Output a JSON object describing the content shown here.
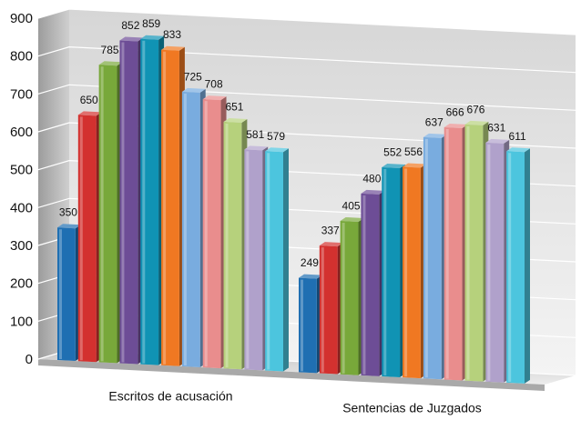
{
  "chart_data": {
    "type": "bar",
    "categories": [
      "Escritos de acusación",
      "Sentencias de Juzgados"
    ],
    "series": [
      {
        "values": [
          350,
          249
        ],
        "color": "#1f6fb2"
      },
      {
        "values": [
          650,
          337
        ],
        "color": "#d3312f"
      },
      {
        "values": [
          785,
          405
        ],
        "color": "#78a83a"
      },
      {
        "values": [
          852,
          480
        ],
        "color": "#6d4d96"
      },
      {
        "values": [
          859,
          552
        ],
        "color": "#1093b4"
      },
      {
        "values": [
          833,
          556
        ],
        "color": "#f07822"
      },
      {
        "values": [
          725,
          637
        ],
        "color": "#79acdf"
      },
      {
        "values": [
          708,
          666
        ],
        "color": "#e98d8d"
      },
      {
        "values": [
          651,
          676
        ],
        "color": "#b6d17c"
      },
      {
        "values": [
          581,
          631
        ],
        "color": "#b0a1cb"
      },
      {
        "values": [
          579,
          611
        ],
        "color": "#4cc5de"
      }
    ],
    "y_ticks": [
      0,
      100,
      200,
      300,
      400,
      500,
      600,
      700,
      800,
      900
    ],
    "ylim": [
      0,
      900
    ],
    "grid": true,
    "style": "3d"
  }
}
